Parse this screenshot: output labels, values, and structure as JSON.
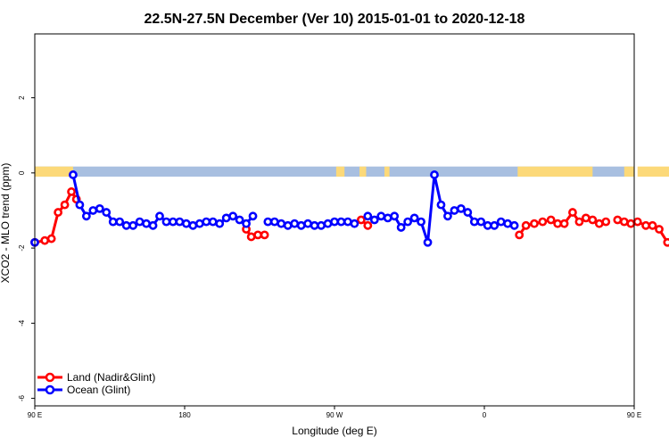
{
  "chart_data": {
    "type": "line",
    "title": "22.5N-27.5N December (Ver 10)   2015-01-01 to 2020-12-18",
    "xlabel": "Longitude (deg E)",
    "ylabel": "XCO2 - MLO trend (ppm)",
    "xlim": [
      90,
      450
    ],
    "ylim": [
      -6.2,
      3.7
    ],
    "x_ticks": [
      {
        "value": 90,
        "label": "90 E"
      },
      {
        "value": 180,
        "label": "180"
      },
      {
        "value": 270,
        "label": "90 W"
      },
      {
        "value": 360,
        "label": "0"
      },
      {
        "value": 450,
        "label": "90 E"
      },
      {
        "value": 540,
        "label": "180"
      }
    ],
    "y_ticks": [
      {
        "value": 2,
        "label": "2"
      },
      {
        "value": 0,
        "label": "0"
      },
      {
        "value": -2,
        "label": "-2"
      },
      {
        "value": -4,
        "label": "-4"
      },
      {
        "value": -6,
        "label": "-6"
      }
    ],
    "grid": false,
    "legend_position": "bottom-left",
    "land_sea_strip": {
      "y_range": [
        -0.1,
        0.17
      ],
      "ocean_color": "#a8bfe0",
      "land_color": "#fcd979",
      "land_segments": [
        [
          90,
          113
        ],
        [
          271,
          276
        ],
        [
          285,
          289
        ],
        [
          300,
          303
        ],
        [
          380,
          425
        ],
        [
          444,
          450
        ],
        [
          452,
          473
        ]
      ]
    },
    "series": [
      {
        "name": "Land (Nadir&Glint)",
        "color": "#ff0000",
        "x": [
          90,
          96,
          100,
          104,
          108,
          112,
          115,
          217,
          220,
          224,
          228,
          286,
          290,
          381,
          385,
          390,
          395,
          400,
          404,
          408,
          413,
          417,
          421,
          425,
          429,
          433,
          440,
          444,
          448,
          452,
          457,
          461,
          465,
          470,
          474,
          477,
          480
        ],
        "y": [
          -1.85,
          -1.8,
          -1.75,
          -1.05,
          -0.85,
          -0.5,
          -0.7,
          -1.5,
          -1.7,
          -1.65,
          -1.65,
          -1.25,
          -1.4,
          -1.65,
          -1.4,
          -1.35,
          -1.3,
          -1.25,
          -1.35,
          -1.35,
          -1.05,
          -1.3,
          -1.2,
          -1.25,
          -1.35,
          -1.3,
          -1.25,
          -1.3,
          -1.35,
          -1.3,
          -1.4,
          -1.4,
          -1.5,
          -1.85,
          -1.8,
          -1.75,
          -1.05
        ]
      },
      {
        "name": "Ocean (Glint)",
        "color": "#0000ff",
        "x": [
          90,
          113,
          117,
          121,
          125,
          129,
          133,
          137,
          141,
          145,
          149,
          153,
          157,
          161,
          165,
          169,
          173,
          177,
          181,
          185,
          189,
          193,
          197,
          201,
          205,
          209,
          213,
          217,
          221,
          230,
          234,
          238,
          242,
          246,
          250,
          254,
          258,
          262,
          266,
          270,
          274,
          278,
          282,
          290,
          294,
          298,
          302,
          306,
          310,
          314,
          318,
          322,
          326,
          330,
          334,
          338,
          342,
          346,
          350,
          354,
          358,
          362,
          366,
          370,
          374,
          378
        ],
        "y": [
          -1.85,
          -0.05,
          -0.85,
          -1.15,
          -1.0,
          -0.95,
          -1.05,
          -1.3,
          -1.3,
          -1.4,
          -1.4,
          -1.3,
          -1.35,
          -1.4,
          -1.15,
          -1.3,
          -1.3,
          -1.3,
          -1.35,
          -1.4,
          -1.35,
          -1.3,
          -1.3,
          -1.35,
          -1.2,
          -1.15,
          -1.25,
          -1.35,
          -1.15,
          -1.3,
          -1.3,
          -1.35,
          -1.4,
          -1.35,
          -1.4,
          -1.35,
          -1.4,
          -1.4,
          -1.35,
          -1.3,
          -1.3,
          -1.3,
          -1.35,
          -1.15,
          -1.25,
          -1.15,
          -1.2,
          -1.15,
          -1.45,
          -1.3,
          -1.2,
          -1.3,
          -1.85,
          -0.05,
          -0.85,
          -1.15,
          -1.0,
          -0.95,
          -1.05,
          -1.3,
          -1.3,
          -1.4,
          -1.4,
          -1.3,
          -1.35,
          -1.4
        ],
        "x_shift_note": ""
      }
    ]
  }
}
